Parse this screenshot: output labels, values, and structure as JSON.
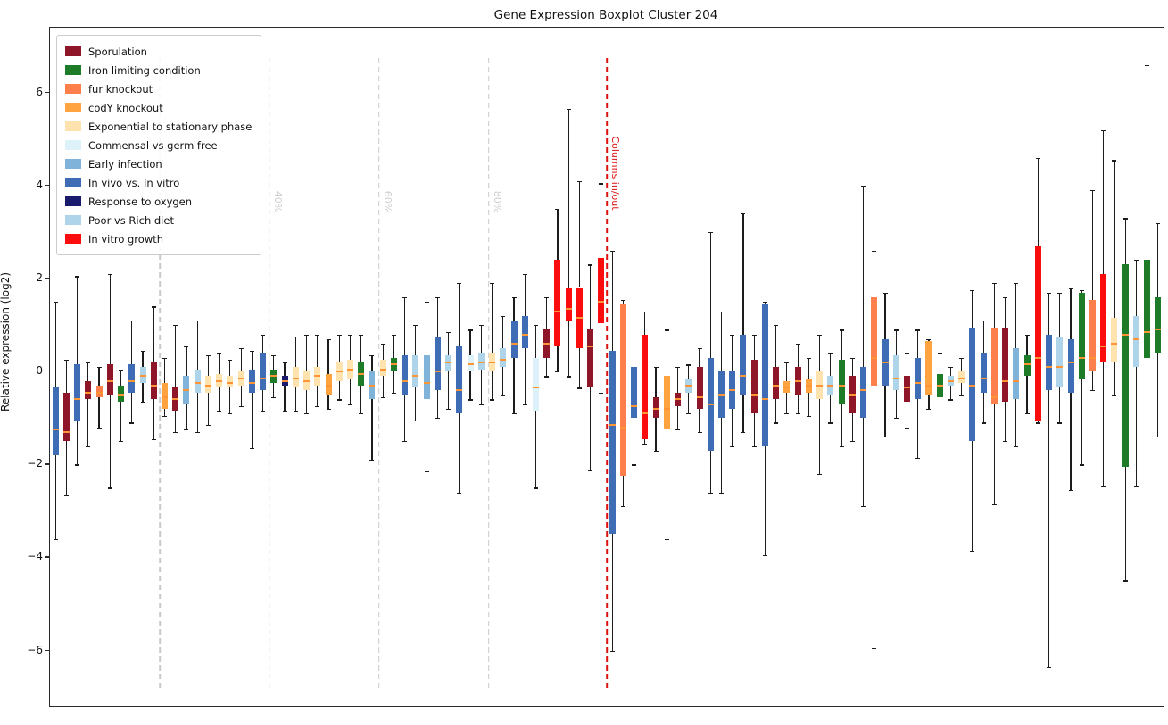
{
  "chart_data": {
    "type": "boxplot",
    "title": "Gene Expression Boxplot Cluster 204",
    "ylabel": "Relative expression (log2)",
    "xlabel": "",
    "ylim": [
      -7.2,
      7.4
    ],
    "yticks": [
      {
        "v": 6,
        "label": "6"
      },
      {
        "v": 4,
        "label": "4"
      },
      {
        "v": 2,
        "label": "2"
      },
      {
        "v": 0,
        "label": "0"
      },
      {
        "v": -2,
        "label": "−2"
      },
      {
        "v": -4,
        "label": "−4"
      },
      {
        "v": -6,
        "label": "−6"
      }
    ],
    "grid": false,
    "legend_position": "upper-left",
    "median_color": "#ff9435",
    "whisker_color": "#1c1c1c",
    "vline_label_color": "#cfcfcf",
    "vlines": [
      {
        "x": 0.0986,
        "label": "20%",
        "color": "#c9c9c9",
        "label_y": 0.257
      },
      {
        "x": 0.197,
        "label": "40%",
        "color": "#c9c9c9",
        "label_y": 0.257
      },
      {
        "x": 0.2955,
        "label": "60%",
        "color": "#c9c9c9",
        "label_y": 0.257
      },
      {
        "x": 0.3941,
        "label": "80%",
        "color": "#c9c9c9",
        "label_y": 0.257
      }
    ],
    "marker_line": {
      "x": 0.5,
      "label": "Columns in/out",
      "color": "#dd1111",
      "label_y": 0.215
    },
    "legend": [
      {
        "key": "sp",
        "label": "Sporulation",
        "color": "#8e1628"
      },
      {
        "key": "il",
        "label": "Iron limiting condition",
        "color": "#1e7b28"
      },
      {
        "key": "fk",
        "label": "fur knockout",
        "color": "#fc7f4c"
      },
      {
        "key": "ck",
        "label": "codY knockout",
        "color": "#ffa341"
      },
      {
        "key": "es",
        "label": "Exponential to stationary phase",
        "color": "#ffe3ae"
      },
      {
        "key": "cg",
        "label": "Commensal vs germ free",
        "color": "#ddf2f8"
      },
      {
        "key": "ei",
        "label": "Early infection",
        "color": "#7fb3d9"
      },
      {
        "key": "iv",
        "label": "In vivo vs. In vitro",
        "color": "#3e6db5"
      },
      {
        "key": "ro",
        "label": "Response to oxygen",
        "color": "#1b1b6e"
      },
      {
        "key": "pr",
        "label": "Poor vs Rich diet",
        "color": "#aed4ea"
      },
      {
        "key": "vg",
        "label": "In vitro growth",
        "color": "#fb0d0d"
      }
    ],
    "box_format": [
      "condition_key",
      "whisker_low",
      "q1",
      "median",
      "q3",
      "whisker_high"
    ],
    "boxes": [
      [
        "iv",
        -3.6,
        -1.8,
        -1.25,
        -0.35,
        1.5
      ],
      [
        "sp",
        -2.65,
        -1.5,
        -1.3,
        -0.45,
        0.25
      ],
      [
        "iv",
        -2.0,
        -1.05,
        -0.6,
        0.15,
        2.05
      ],
      [
        "sp",
        -1.6,
        -0.6,
        -0.45,
        -0.2,
        0.2
      ],
      [
        "fk",
        -1.2,
        -0.55,
        -0.45,
        -0.3,
        0.1
      ],
      [
        "sp",
        -2.5,
        -0.5,
        -0.2,
        0.15,
        2.1
      ],
      [
        "il",
        -1.5,
        -0.65,
        -0.5,
        -0.3,
        0.05
      ],
      [
        "iv",
        -1.1,
        -0.45,
        -0.2,
        0.15,
        1.1
      ],
      [
        "pr",
        -0.65,
        -0.25,
        -0.1,
        0.1,
        0.45
      ],
      [
        "sp",
        -1.45,
        -0.6,
        -0.3,
        0.2,
        1.4
      ],
      [
        "ck",
        -0.95,
        -0.8,
        -0.55,
        -0.25,
        0.3
      ],
      [
        "sp",
        -1.3,
        -0.85,
        -0.6,
        -0.35,
        1.0
      ],
      [
        "ei",
        -1.25,
        -0.7,
        -0.4,
        -0.1,
        0.55
      ],
      [
        "pr",
        -1.3,
        -0.45,
        -0.25,
        0.05,
        1.1
      ],
      [
        "es",
        -1.15,
        -0.45,
        -0.3,
        -0.1,
        0.35
      ],
      [
        "es",
        -0.85,
        -0.35,
        -0.2,
        -0.05,
        0.4
      ],
      [
        "es",
        -0.9,
        -0.35,
        -0.25,
        -0.1,
        0.25
      ],
      [
        "es",
        -0.75,
        -0.3,
        -0.15,
        0.0,
        0.5
      ],
      [
        "iv",
        -1.65,
        -0.45,
        -0.25,
        0.05,
        0.45
      ],
      [
        "iv",
        -0.85,
        -0.4,
        -0.15,
        0.4,
        0.8
      ],
      [
        "il",
        -0.55,
        -0.25,
        -0.1,
        0.05,
        0.35
      ],
      [
        "ro",
        -0.85,
        -0.3,
        -0.2,
        -0.1,
        0.2
      ],
      [
        "es",
        -0.85,
        -0.35,
        -0.15,
        0.1,
        0.75
      ],
      [
        "es",
        -0.9,
        -0.4,
        -0.2,
        0.0,
        0.8
      ],
      [
        "es",
        -0.75,
        -0.3,
        -0.1,
        0.1,
        0.8
      ],
      [
        "ck",
        -0.8,
        -0.5,
        -0.3,
        -0.05,
        0.7
      ],
      [
        "es",
        -0.6,
        -0.2,
        0.0,
        0.2,
        0.8
      ],
      [
        "es",
        -0.7,
        -0.15,
        0.05,
        0.25,
        0.8
      ],
      [
        "il",
        -0.9,
        -0.3,
        -0.05,
        0.2,
        0.8
      ],
      [
        "ei",
        -1.9,
        -0.6,
        -0.3,
        0.0,
        0.35
      ],
      [
        "es",
        -0.55,
        -0.1,
        0.05,
        0.25,
        0.6
      ],
      [
        "il",
        -0.45,
        0.0,
        0.15,
        0.3,
        0.8
      ],
      [
        "iv",
        -1.5,
        -0.5,
        -0.2,
        0.35,
        1.6
      ],
      [
        "pr",
        -1.05,
        -0.35,
        -0.1,
        0.35,
        1.0
      ],
      [
        "ei",
        -2.15,
        -0.6,
        -0.25,
        0.35,
        1.5
      ],
      [
        "iv",
        -1.0,
        -0.4,
        0.0,
        0.75,
        1.6
      ],
      [
        "pr",
        -0.8,
        0.0,
        0.2,
        0.35,
        0.85
      ],
      [
        "iv",
        -2.6,
        -0.9,
        -0.4,
        0.55,
        1.9
      ],
      [
        "cg",
        -0.6,
        0.0,
        0.15,
        0.35,
        0.9
      ],
      [
        "pr",
        -0.7,
        0.05,
        0.2,
        0.4,
        1.0
      ],
      [
        "es",
        -0.6,
        0.0,
        0.2,
        0.4,
        1.9
      ],
      [
        "pr",
        -0.5,
        0.1,
        0.25,
        0.5,
        1.2
      ],
      [
        "iv",
        -0.9,
        0.3,
        0.6,
        1.1,
        1.6
      ],
      [
        "iv",
        -0.7,
        0.5,
        0.8,
        1.2,
        2.1
      ],
      [
        "cg",
        -2.5,
        -0.85,
        -0.35,
        0.3,
        1.0
      ],
      [
        "sp",
        -0.1,
        0.3,
        0.6,
        0.9,
        1.6
      ],
      [
        "vg",
        0.0,
        0.55,
        1.3,
        2.4,
        3.5
      ],
      [
        "vg",
        -0.1,
        1.1,
        1.35,
        1.8,
        5.65
      ],
      [
        "vg",
        -0.35,
        0.5,
        1.15,
        1.8,
        4.1
      ],
      [
        "sp",
        -2.1,
        -0.35,
        0.55,
        0.9,
        2.3
      ],
      [
        "vg",
        -0.45,
        1.05,
        1.5,
        2.45,
        4.05
      ],
      [
        "iv",
        -6.0,
        -3.5,
        -1.15,
        0.45,
        2.6
      ],
      [
        "fk",
        -2.9,
        -2.25,
        -1.2,
        1.45,
        1.55
      ],
      [
        "iv",
        -2.0,
        -1.0,
        -0.75,
        0.1,
        1.3
      ],
      [
        "vg",
        -1.55,
        -1.45,
        -0.9,
        0.8,
        1.3
      ],
      [
        "sp",
        -1.7,
        -1.0,
        -0.8,
        -0.55,
        0.1
      ],
      [
        "ck",
        -3.6,
        -1.25,
        -0.8,
        -0.1,
        0.9
      ],
      [
        "sp",
        -1.25,
        -0.75,
        -0.6,
        -0.45,
        0.1
      ],
      [
        "pr",
        -0.9,
        -0.45,
        -0.3,
        -0.15,
        0.15
      ],
      [
        "sp",
        -1.3,
        -0.8,
        -0.55,
        0.1,
        0.5
      ],
      [
        "iv",
        -2.6,
        -1.7,
        -0.7,
        0.3,
        3.0
      ],
      [
        "iv",
        -2.6,
        -1.0,
        -0.5,
        0.0,
        1.3
      ],
      [
        "iv",
        -1.6,
        -0.8,
        -0.4,
        0.0,
        0.8
      ],
      [
        "iv",
        -1.3,
        -0.5,
        -0.1,
        0.8,
        3.4
      ],
      [
        "sp",
        -1.6,
        -0.9,
        -0.5,
        0.25,
        0.8
      ],
      [
        "iv",
        -3.95,
        -1.6,
        -0.6,
        1.45,
        1.5
      ],
      [
        "sp",
        -1.1,
        -0.6,
        -0.3,
        0.1,
        1.0
      ],
      [
        "ck",
        -0.9,
        -0.45,
        -0.35,
        -0.2,
        0.2
      ],
      [
        "sp",
        -0.9,
        -0.5,
        -0.2,
        0.1,
        0.6
      ],
      [
        "ck",
        -0.95,
        -0.45,
        -0.3,
        -0.15,
        0.3
      ],
      [
        "es",
        -2.2,
        -0.6,
        -0.3,
        0.0,
        0.8
      ],
      [
        "pr",
        -1.1,
        -0.5,
        -0.3,
        -0.1,
        0.4
      ],
      [
        "il",
        -1.6,
        -0.7,
        -0.3,
        0.25,
        0.9
      ],
      [
        "sp",
        -1.5,
        -0.9,
        -0.5,
        -0.1,
        0.3
      ],
      [
        "iv",
        -2.9,
        -1.0,
        -0.4,
        0.1,
        4.0
      ],
      [
        "fk",
        -5.95,
        -0.3,
        0.3,
        1.6,
        2.6
      ],
      [
        "iv",
        -1.4,
        -0.3,
        0.2,
        0.7,
        1.7
      ],
      [
        "pr",
        -1.0,
        -0.4,
        -0.15,
        0.35,
        0.9
      ],
      [
        "sp",
        -1.2,
        -0.65,
        -0.35,
        -0.1,
        0.4
      ],
      [
        "iv",
        -1.85,
        -0.6,
        -0.25,
        0.3,
        0.9
      ],
      [
        "ck",
        -0.8,
        -0.5,
        -0.3,
        0.65,
        0.7
      ],
      [
        "il",
        -1.4,
        -0.55,
        -0.3,
        -0.05,
        0.4
      ],
      [
        "pr",
        -0.6,
        -0.3,
        -0.2,
        -0.1,
        0.1
      ],
      [
        "es",
        -0.5,
        -0.25,
        -0.15,
        0.0,
        0.3
      ],
      [
        "iv",
        -3.85,
        -1.5,
        -0.3,
        0.95,
        1.75
      ],
      [
        "iv",
        -1.1,
        -0.45,
        -0.15,
        0.4,
        1.1
      ],
      [
        "fk",
        -2.85,
        -0.7,
        -0.55,
        0.95,
        1.9
      ],
      [
        "sp",
        -1.5,
        -0.65,
        -0.2,
        0.95,
        1.6
      ],
      [
        "ei",
        -1.6,
        -0.6,
        -0.2,
        0.5,
        1.9
      ],
      [
        "il",
        -0.9,
        -0.1,
        0.15,
        0.35,
        0.8
      ],
      [
        "vg",
        -1.1,
        -1.05,
        0.3,
        2.7,
        4.6
      ],
      [
        "iv",
        -6.35,
        -0.4,
        0.1,
        0.8,
        1.7
      ],
      [
        "pr",
        -1.1,
        -0.35,
        0.1,
        0.75,
        1.7
      ],
      [
        "iv",
        -2.55,
        -0.45,
        0.2,
        0.7,
        1.8
      ],
      [
        "il",
        -2.0,
        -0.15,
        0.3,
        1.7,
        1.75
      ],
      [
        "fk",
        -0.4,
        0.0,
        0.3,
        1.55,
        3.9
      ],
      [
        "vg",
        -2.45,
        0.2,
        0.55,
        2.1,
        5.2
      ],
      [
        "es",
        -0.5,
        0.2,
        0.6,
        1.15,
        4.55
      ],
      [
        "il",
        -4.5,
        -2.05,
        0.8,
        2.3,
        3.3
      ],
      [
        "pr",
        -2.45,
        0.1,
        0.7,
        1.2,
        2.4
      ],
      [
        "il",
        -1.4,
        0.3,
        0.85,
        2.4,
        6.6
      ],
      [
        "il",
        -1.4,
        0.4,
        0.9,
        1.6,
        3.2
      ]
    ]
  }
}
